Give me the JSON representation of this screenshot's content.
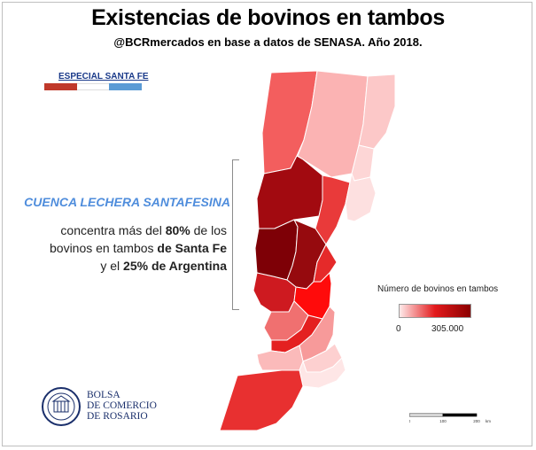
{
  "header": {
    "title": "Existencias de bovinos en tambos",
    "subtitle": "@BCRmercados en base a datos de SENASA. Año 2018."
  },
  "badge": {
    "label": "ESPECIAL SANTA FE",
    "flag_colors": [
      "#c0392b",
      "#ffffff",
      "#5b9bd5"
    ]
  },
  "callout": {
    "title": "CUENCA LECHERA SANTAFESINA",
    "line1": "concentra más del ",
    "pct1": "80%",
    "line1b": " de los",
    "line2": "bovinos en tambos ",
    "place": "de Santa Fe",
    "line3a": "y el ",
    "pct2": "25% de Argentina"
  },
  "legend": {
    "title": "Número de bovinos en tambos",
    "min_label": "0",
    "max_label": "305.000",
    "color_low": "#ffeaea",
    "color_mid": "#e31a1c",
    "color_high": "#8b0000"
  },
  "scale": {
    "ticks": [
      "0",
      "100",
      "200"
    ],
    "unit": "km"
  },
  "logo": {
    "line1": "BOLSA",
    "line2": "DE COMERCIO",
    "line3": "DE ROSARIO"
  },
  "map": {
    "departments": [
      {
        "name": "north-west",
        "fill": "#f35e5e"
      },
      {
        "name": "north-center",
        "fill": "#fbb3b3"
      },
      {
        "name": "north-east",
        "fill": "#fcc8c8"
      },
      {
        "name": "north-east-small",
        "fill": "#fdd6d6"
      },
      {
        "name": "central-west-upper",
        "fill": "#a20a10"
      },
      {
        "name": "central-east-1",
        "fill": "#e93a3a"
      },
      {
        "name": "central-east-2",
        "fill": "#fde0e0"
      },
      {
        "name": "central-east-3",
        "fill": "#ffffff"
      },
      {
        "name": "cuenca-west",
        "fill": "#7e0006"
      },
      {
        "name": "cuenca-east",
        "fill": "#960a0e"
      },
      {
        "name": "east-river",
        "fill": "#e52a2a"
      },
      {
        "name": "south-west-1",
        "fill": "#ce1a20"
      },
      {
        "name": "south-center",
        "fill": "#ff0b0b"
      },
      {
        "name": "south-1",
        "fill": "#f07070"
      },
      {
        "name": "south-2",
        "fill": "#e42020"
      },
      {
        "name": "south-3",
        "fill": "#f79a9a"
      },
      {
        "name": "south-4",
        "fill": "#fbbaba"
      },
      {
        "name": "south-5",
        "fill": "#fdd0d0"
      },
      {
        "name": "south-east",
        "fill": "#fee6e6"
      },
      {
        "name": "south-tip",
        "fill": "#e83030"
      }
    ]
  }
}
